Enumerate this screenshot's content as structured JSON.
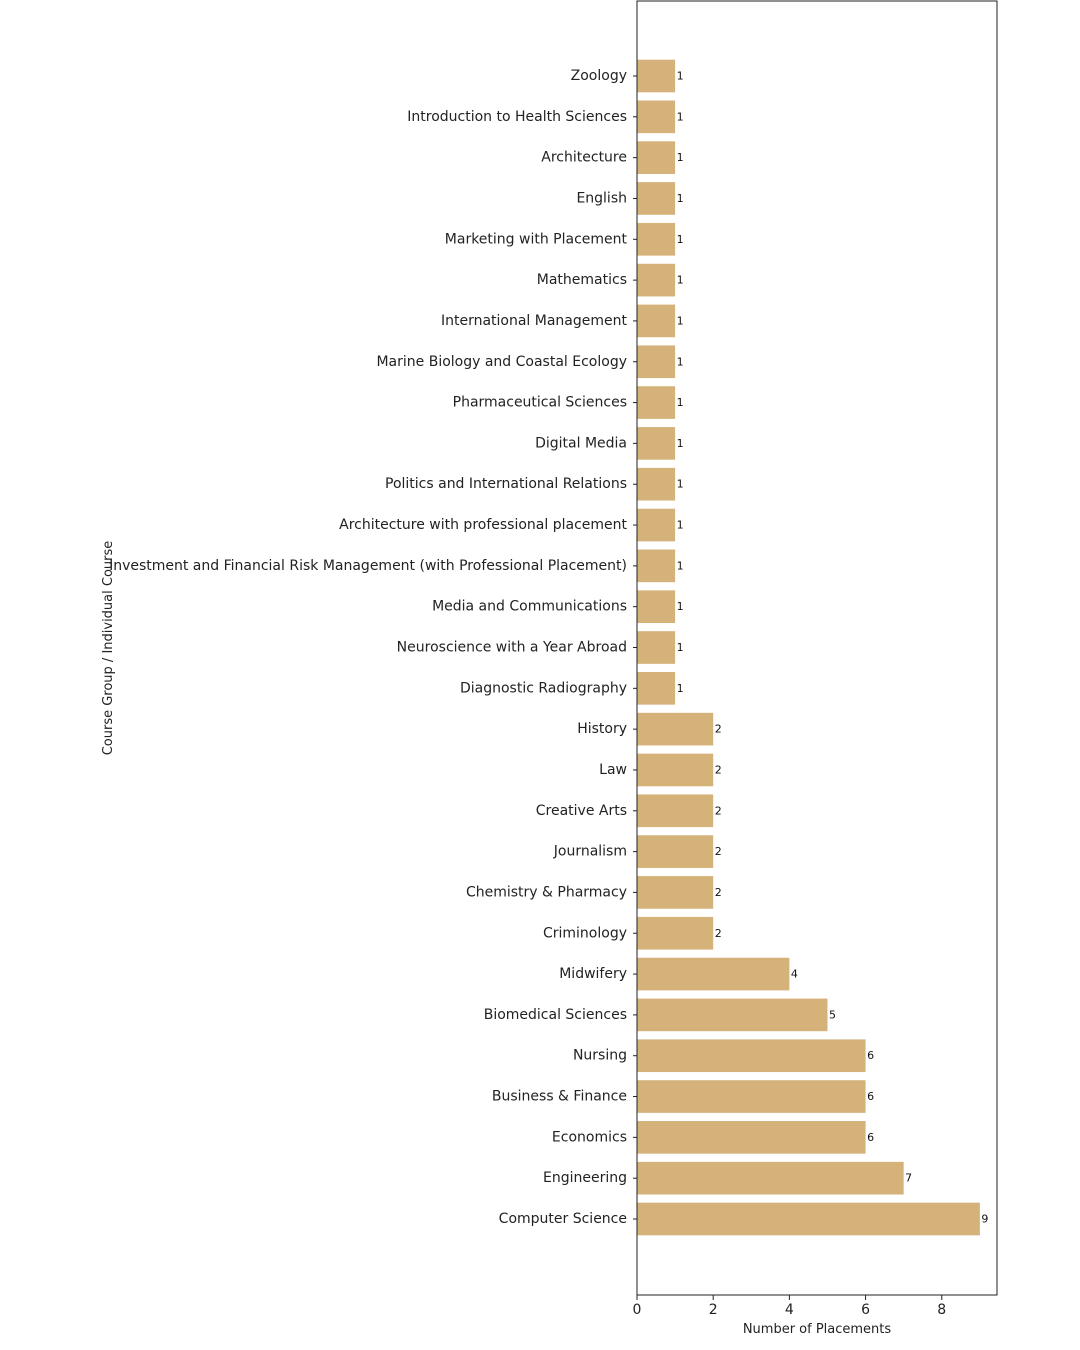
{
  "chart_data": {
    "type": "bar",
    "orientation": "horizontal",
    "categories": [
      "Zoology",
      "Introduction to Health Sciences",
      "Architecture",
      "English",
      "Marketing with Placement",
      "Mathematics",
      "International Management",
      "Marine Biology and Coastal Ecology",
      "Pharmaceutical Sciences",
      "Digital Media",
      "Politics and International Relations",
      "Architecture with professional placement",
      "Investment and Financial Risk Management (with Professional Placement)",
      "Media and Communications",
      "Neuroscience with a Year Abroad",
      "Diagnostic Radiography",
      "History",
      "Law",
      "Creative Arts",
      "Journalism",
      "Chemistry & Pharmacy",
      "Criminology",
      "Midwifery",
      "Biomedical Sciences",
      "Nursing",
      "Business & Finance",
      "Economics",
      "Engineering",
      "Computer Science"
    ],
    "values": [
      1,
      1,
      1,
      1,
      1,
      1,
      1,
      1,
      1,
      1,
      1,
      1,
      1,
      1,
      1,
      1,
      2,
      2,
      2,
      2,
      2,
      2,
      4,
      5,
      6,
      6,
      6,
      7,
      9
    ],
    "data_labels": [
      "1",
      "1",
      "1",
      "1",
      "1",
      "1",
      "1",
      "1",
      "1",
      "1",
      "1",
      "1",
      "1",
      "1",
      "1",
      "1",
      "2",
      "2",
      "2",
      "2",
      "2",
      "2",
      "4",
      "5",
      "6",
      "6",
      "6",
      "7",
      "9"
    ],
    "xlabel": "Number of Placements",
    "ylabel": "Course Group / Individual Course",
    "xlim": [
      0,
      9.45
    ],
    "xticks": [
      0,
      2,
      4,
      6,
      8
    ],
    "xtick_labels": [
      "0",
      "2",
      "4",
      "6",
      "8"
    ],
    "bar_color": "#d4b27a",
    "grid": false
  }
}
